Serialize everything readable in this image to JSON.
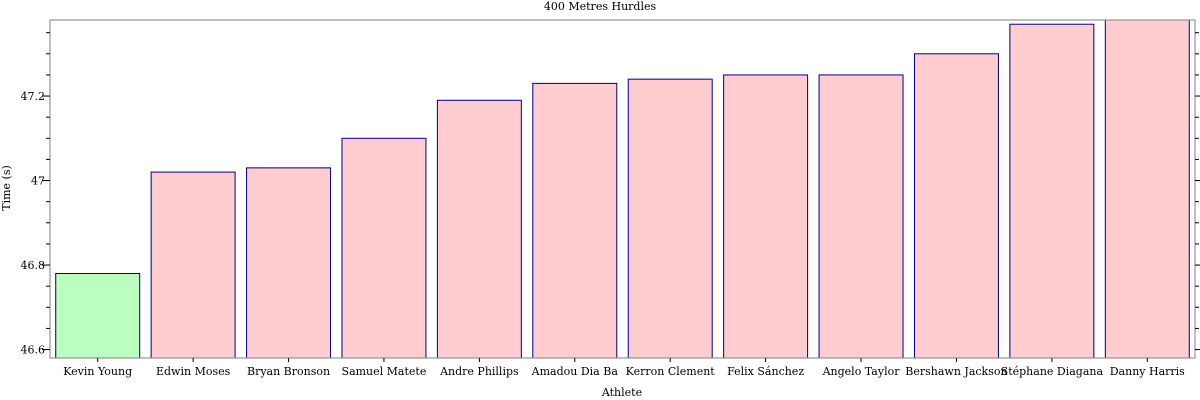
{
  "chart_data": {
    "type": "bar",
    "title": "400 Metres Hurdles",
    "xlabel": "Athlete",
    "ylabel": "Time (s)",
    "categories": [
      "Kevin Young",
      "Edwin Moses",
      "Bryan Bronson",
      "Samuel Matete",
      "Andre Phillips",
      "Amadou Dia Ba",
      "Kerron Clement",
      "Felix Sánchez",
      "Angelo Taylor",
      "Bershawn Jackson",
      "Stéphane Diagana",
      "Danny Harris"
    ],
    "values": [
      46.78,
      47.02,
      47.03,
      47.1,
      47.19,
      47.23,
      47.24,
      47.25,
      47.25,
      47.3,
      47.37,
      47.38
    ],
    "highlight_index": 0,
    "ylim": [
      46.58,
      47.38
    ],
    "yticks": [
      46.6,
      46.8,
      47.0,
      47.2
    ],
    "ytick_labels": [
      "46.6",
      "46.8",
      "47",
      "47.2"
    ],
    "grid": false,
    "colors": {
      "bar_fill": "#ffcccf",
      "highlight_fill": "#bbffc0",
      "bar_stroke": "#000080"
    }
  }
}
